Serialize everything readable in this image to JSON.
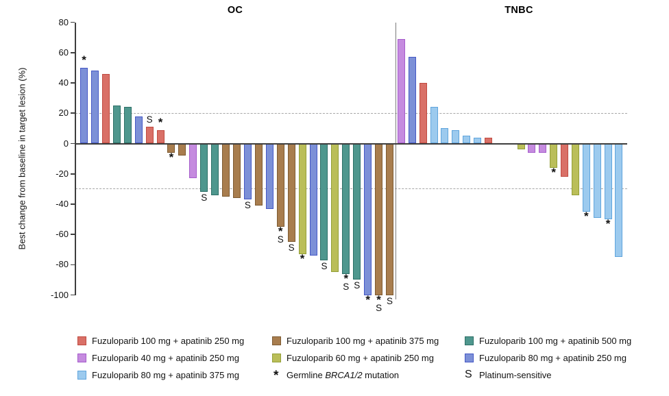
{
  "chart_data": {
    "type": "bar",
    "title": "",
    "ylabel": "Best change from baseline in target lesion (%)",
    "ylim": [
      -100,
      80
    ],
    "y_ticks": [
      80,
      60,
      40,
      20,
      0,
      -20,
      -40,
      -60,
      -80,
      -100
    ],
    "reference_lines": [
      20,
      -30
    ],
    "grid": "dashed-reference-only",
    "legend_position": "bottom",
    "groups": {
      "F100A250": {
        "label": "Fuzuloparib 100 mg + apatinib 250 mg",
        "fill": "#D97067",
        "border": "#C04A40"
      },
      "F40A250": {
        "label": "Fuzuloparib 40 mg + apatinib 250 mg",
        "fill": "#C58BDF",
        "border": "#A55BCB"
      },
      "F80A375": {
        "label": "Fuzuloparib 80 mg + apatinib 375 mg",
        "fill": "#9CCAEE",
        "border": "#5FA4DC"
      },
      "F100A375": {
        "label": "Fuzuloparib 100 mg + apatinib 375 mg",
        "fill": "#A87D4E",
        "border": "#7D5A31"
      },
      "F60A250": {
        "label": "Fuzuloparib 60 mg + apatinib 250 mg",
        "fill": "#BABE59",
        "border": "#939F37"
      },
      "F100A500": {
        "label": "Fuzuloparib 100 mg + apatinib 500 mg",
        "fill": "#4F978E",
        "border": "#2D6F66"
      },
      "F80A250": {
        "label": "Fuzuloparib 80 mg + apatinib 250 mg",
        "fill": "#7C90D7",
        "border": "#4457C5"
      }
    },
    "markers": {
      "star": {
        "symbol": "*",
        "label_prefix": "Germline ",
        "label_italic": "BRCA1/2",
        "label_suffix": " mutation"
      },
      "S": {
        "symbol": "S",
        "label_prefix": "Platinum-sensitive",
        "label_italic": "",
        "label_suffix": ""
      }
    },
    "panels": [
      {
        "title": "OC",
        "bars": [
          {
            "group": "F80A250",
            "value": 50,
            "mark": "star"
          },
          {
            "group": "F80A250",
            "value": 48
          },
          {
            "group": "F100A250",
            "value": 46
          },
          {
            "group": "F100A500",
            "value": 25
          },
          {
            "group": "F100A500",
            "value": 24
          },
          {
            "group": "F80A250",
            "value": 18
          },
          {
            "group": "F100A250",
            "value": 11,
            "mark": "S"
          },
          {
            "group": "F100A250",
            "value": 9,
            "mark": "star"
          },
          {
            "group": "F100A375",
            "value": -6,
            "mark": "star"
          },
          {
            "group": "F100A375",
            "value": -8
          },
          {
            "group": "F40A250",
            "value": -23
          },
          {
            "group": "F100A500",
            "value": -32,
            "mark": "S"
          },
          {
            "group": "F100A500",
            "value": -34
          },
          {
            "group": "F100A375",
            "value": -35
          },
          {
            "group": "F100A375",
            "value": -36
          },
          {
            "group": "F80A250",
            "value": -37,
            "mark": "S"
          },
          {
            "group": "F100A375",
            "value": -41
          },
          {
            "group": "F80A250",
            "value": -43
          },
          {
            "group": "F100A375",
            "value": -55,
            "mark": "starS"
          },
          {
            "group": "F100A375",
            "value": -65,
            "mark": "S"
          },
          {
            "group": "F60A250",
            "value": -73,
            "mark": "star"
          },
          {
            "group": "F80A250",
            "value": -74
          },
          {
            "group": "F100A500",
            "value": -77,
            "mark": "S"
          },
          {
            "group": "F60A250",
            "value": -85
          },
          {
            "group": "F100A500",
            "value": -86,
            "mark": "starS"
          },
          {
            "group": "F100A500",
            "value": -90,
            "mark": "S"
          },
          {
            "group": "F80A250",
            "value": -100,
            "mark": "star"
          },
          {
            "group": "F100A375",
            "value": -100,
            "mark": "starS"
          },
          {
            "group": "F100A375",
            "value": -100,
            "mark": "S"
          }
        ]
      },
      {
        "title": "TNBC",
        "bars": [
          {
            "group": "F40A250",
            "value": 69
          },
          {
            "group": "F80A250",
            "value": 57
          },
          {
            "group": "F100A250",
            "value": 40
          },
          {
            "group": "F80A375",
            "value": 24
          },
          {
            "group": "F80A375",
            "value": 10
          },
          {
            "group": "F80A375",
            "value": 9
          },
          {
            "group": "F80A375",
            "value": 5
          },
          {
            "group": "F80A375",
            "value": 4
          },
          {
            "group": "F100A250",
            "value": 4
          },
          {
            "group": null,
            "value": 0
          },
          {
            "group": null,
            "value": 0
          },
          {
            "group": "F60A250",
            "value": -4
          },
          {
            "group": "F40A250",
            "value": -6
          },
          {
            "group": "F40A250",
            "value": -6
          },
          {
            "group": "F60A250",
            "value": -16,
            "mark": "star"
          },
          {
            "group": "F100A250",
            "value": -22
          },
          {
            "group": "F60A250",
            "value": -34
          },
          {
            "group": "F80A375",
            "value": -45,
            "mark": "star"
          },
          {
            "group": "F80A375",
            "value": -49
          },
          {
            "group": "F80A375",
            "value": -50,
            "mark": "star"
          },
          {
            "group": "F80A375",
            "value": -75
          }
        ]
      }
    ],
    "legend_columns": [
      [
        {
          "type": "swatch",
          "group": "F100A250"
        },
        {
          "type": "swatch",
          "group": "F40A250"
        },
        {
          "type": "swatch",
          "group": "F80A375"
        }
      ],
      [
        {
          "type": "swatch",
          "group": "F100A375"
        },
        {
          "type": "swatch",
          "group": "F60A250"
        },
        {
          "type": "marker",
          "marker": "star"
        }
      ],
      [
        {
          "type": "swatch",
          "group": "F100A500"
        },
        {
          "type": "swatch",
          "group": "F80A250"
        },
        {
          "type": "marker",
          "marker": "S"
        }
      ]
    ]
  }
}
